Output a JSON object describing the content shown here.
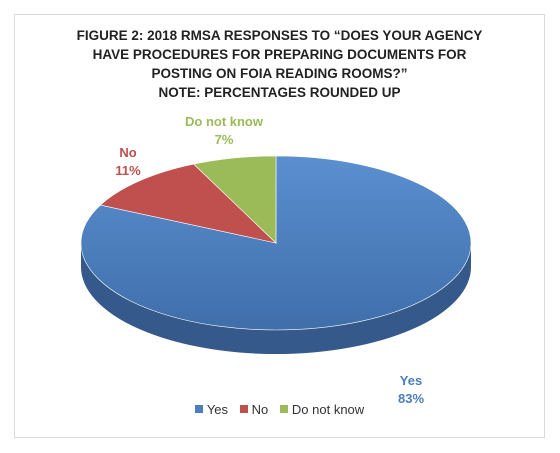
{
  "chart_data": {
    "type": "pie",
    "title_lines": [
      "FIGURE 2: 2018 RMSA RESPONSES TO “DOES YOUR AGENCY",
      "HAVE PROCEDURES FOR PREPARING DOCUMENTS FOR",
      "POSTING ON FOIA READING ROOMS?”",
      "NOTE: PERCENTAGES ROUNDED UP"
    ],
    "slices": [
      {
        "name": "Yes",
        "value": 83,
        "label": "83%",
        "color": "#4a7ebf"
      },
      {
        "name": "No",
        "value": 11,
        "label": "11%",
        "color": "#c0504d"
      },
      {
        "name": "Do not know",
        "value": 7,
        "label": "7%",
        "color": "#9bbb59"
      }
    ],
    "legend_position": "bottom"
  }
}
